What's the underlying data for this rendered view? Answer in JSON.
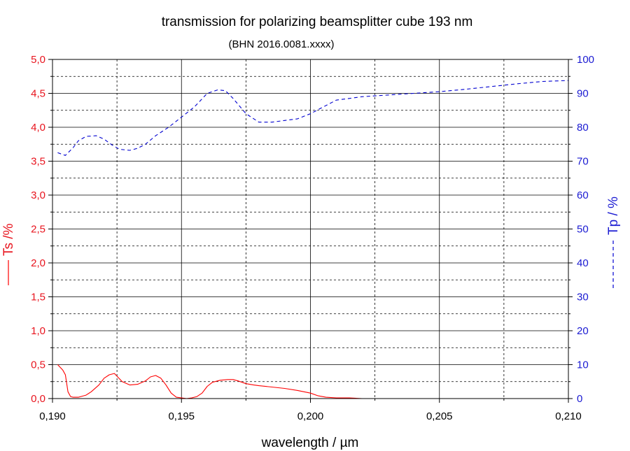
{
  "chart_data": {
    "type": "line",
    "title": "transmission for polarizing beamsplitter cube 193 nm",
    "subtitle": "(BHN 2016.0081.xxxx)",
    "xlabel": "wavelength / µm",
    "ylabel_left": "Ts /%",
    "ylabel_right": "Tp / %",
    "xlim": [
      0.19,
      0.21
    ],
    "ylim_left": [
      0,
      5
    ],
    "ylim_right": [
      0,
      100
    ],
    "x_ticks": [
      "0,190",
      "0,195",
      "0,200",
      "0,205",
      "0,210"
    ],
    "y_left_ticks": [
      "0,0",
      "0,5",
      "1,0",
      "1,5",
      "2,0",
      "2,5",
      "3,0",
      "3,5",
      "4,0",
      "4,5",
      "5,0"
    ],
    "y_right_ticks": [
      "0",
      "10",
      "20",
      "30",
      "40",
      "50",
      "60",
      "70",
      "80",
      "90",
      "100"
    ],
    "grid": true,
    "colors": {
      "left_axis": "#e8141e",
      "right_axis": "#1a1ad2",
      "axis": "#000000"
    },
    "series": [
      {
        "axis": "left",
        "style": "solid",
        "color": "#ff0000",
        "x": [
          0.1902,
          0.1904,
          0.1905,
          0.1906,
          0.1907,
          0.1908,
          0.191,
          0.1913,
          0.1915,
          0.1918,
          0.192,
          0.1922,
          0.1924,
          0.1925,
          0.1927,
          0.193,
          0.1933,
          0.1936,
          0.1938,
          0.194,
          0.1942,
          0.1944,
          0.1946,
          0.1948,
          0.195,
          0.1952,
          0.1954,
          0.1956,
          0.1958,
          0.196,
          0.1962,
          0.1965,
          0.1968,
          0.197,
          0.1972,
          0.1975,
          0.1978,
          0.198,
          0.1985,
          0.199,
          0.1995,
          0.2,
          0.2003,
          0.2006,
          0.201,
          0.2015,
          0.202,
          0.203,
          0.204,
          0.205,
          0.206,
          0.207,
          0.208,
          0.209,
          0.21
        ],
        "y": [
          0.5,
          0.42,
          0.35,
          0.1,
          0.03,
          0.02,
          0.02,
          0.05,
          0.1,
          0.2,
          0.3,
          0.35,
          0.37,
          0.33,
          0.25,
          0.2,
          0.21,
          0.26,
          0.32,
          0.34,
          0.3,
          0.2,
          0.08,
          0.02,
          0.01,
          0.0,
          0.01,
          0.03,
          0.08,
          0.18,
          0.24,
          0.27,
          0.28,
          0.28,
          0.26,
          0.22,
          0.2,
          0.19,
          0.17,
          0.15,
          0.12,
          0.08,
          0.04,
          0.02,
          0.01,
          0.01,
          0.0,
          0.0,
          0.0,
          0.0,
          0.0,
          0.0,
          0.0,
          0.0,
          0.0
        ]
      },
      {
        "axis": "right",
        "style": "dashed",
        "color": "#0000d0",
        "x": [
          0.1902,
          0.1905,
          0.1908,
          0.191,
          0.1913,
          0.1917,
          0.192,
          0.1923,
          0.1926,
          0.193,
          0.1933,
          0.1936,
          0.194,
          0.1945,
          0.195,
          0.1955,
          0.196,
          0.1964,
          0.1967,
          0.197,
          0.1975,
          0.198,
          0.1985,
          0.199,
          0.1995,
          0.2,
          0.2005,
          0.201,
          0.2015,
          0.202,
          0.203,
          0.204,
          0.205,
          0.206,
          0.207,
          0.208,
          0.209,
          0.21
        ],
        "y": [
          72.5,
          71.7,
          74.0,
          76.0,
          77.3,
          77.5,
          76.5,
          74.8,
          73.5,
          73.2,
          73.8,
          75.0,
          77.5,
          80.0,
          83.0,
          86.0,
          90.0,
          91.0,
          90.8,
          88.5,
          84.0,
          81.5,
          81.5,
          82.0,
          82.5,
          84.0,
          86.0,
          88.0,
          88.5,
          89.0,
          89.5,
          90.0,
          90.5,
          91.2,
          92.0,
          92.8,
          93.5,
          93.8
        ]
      }
    ]
  }
}
